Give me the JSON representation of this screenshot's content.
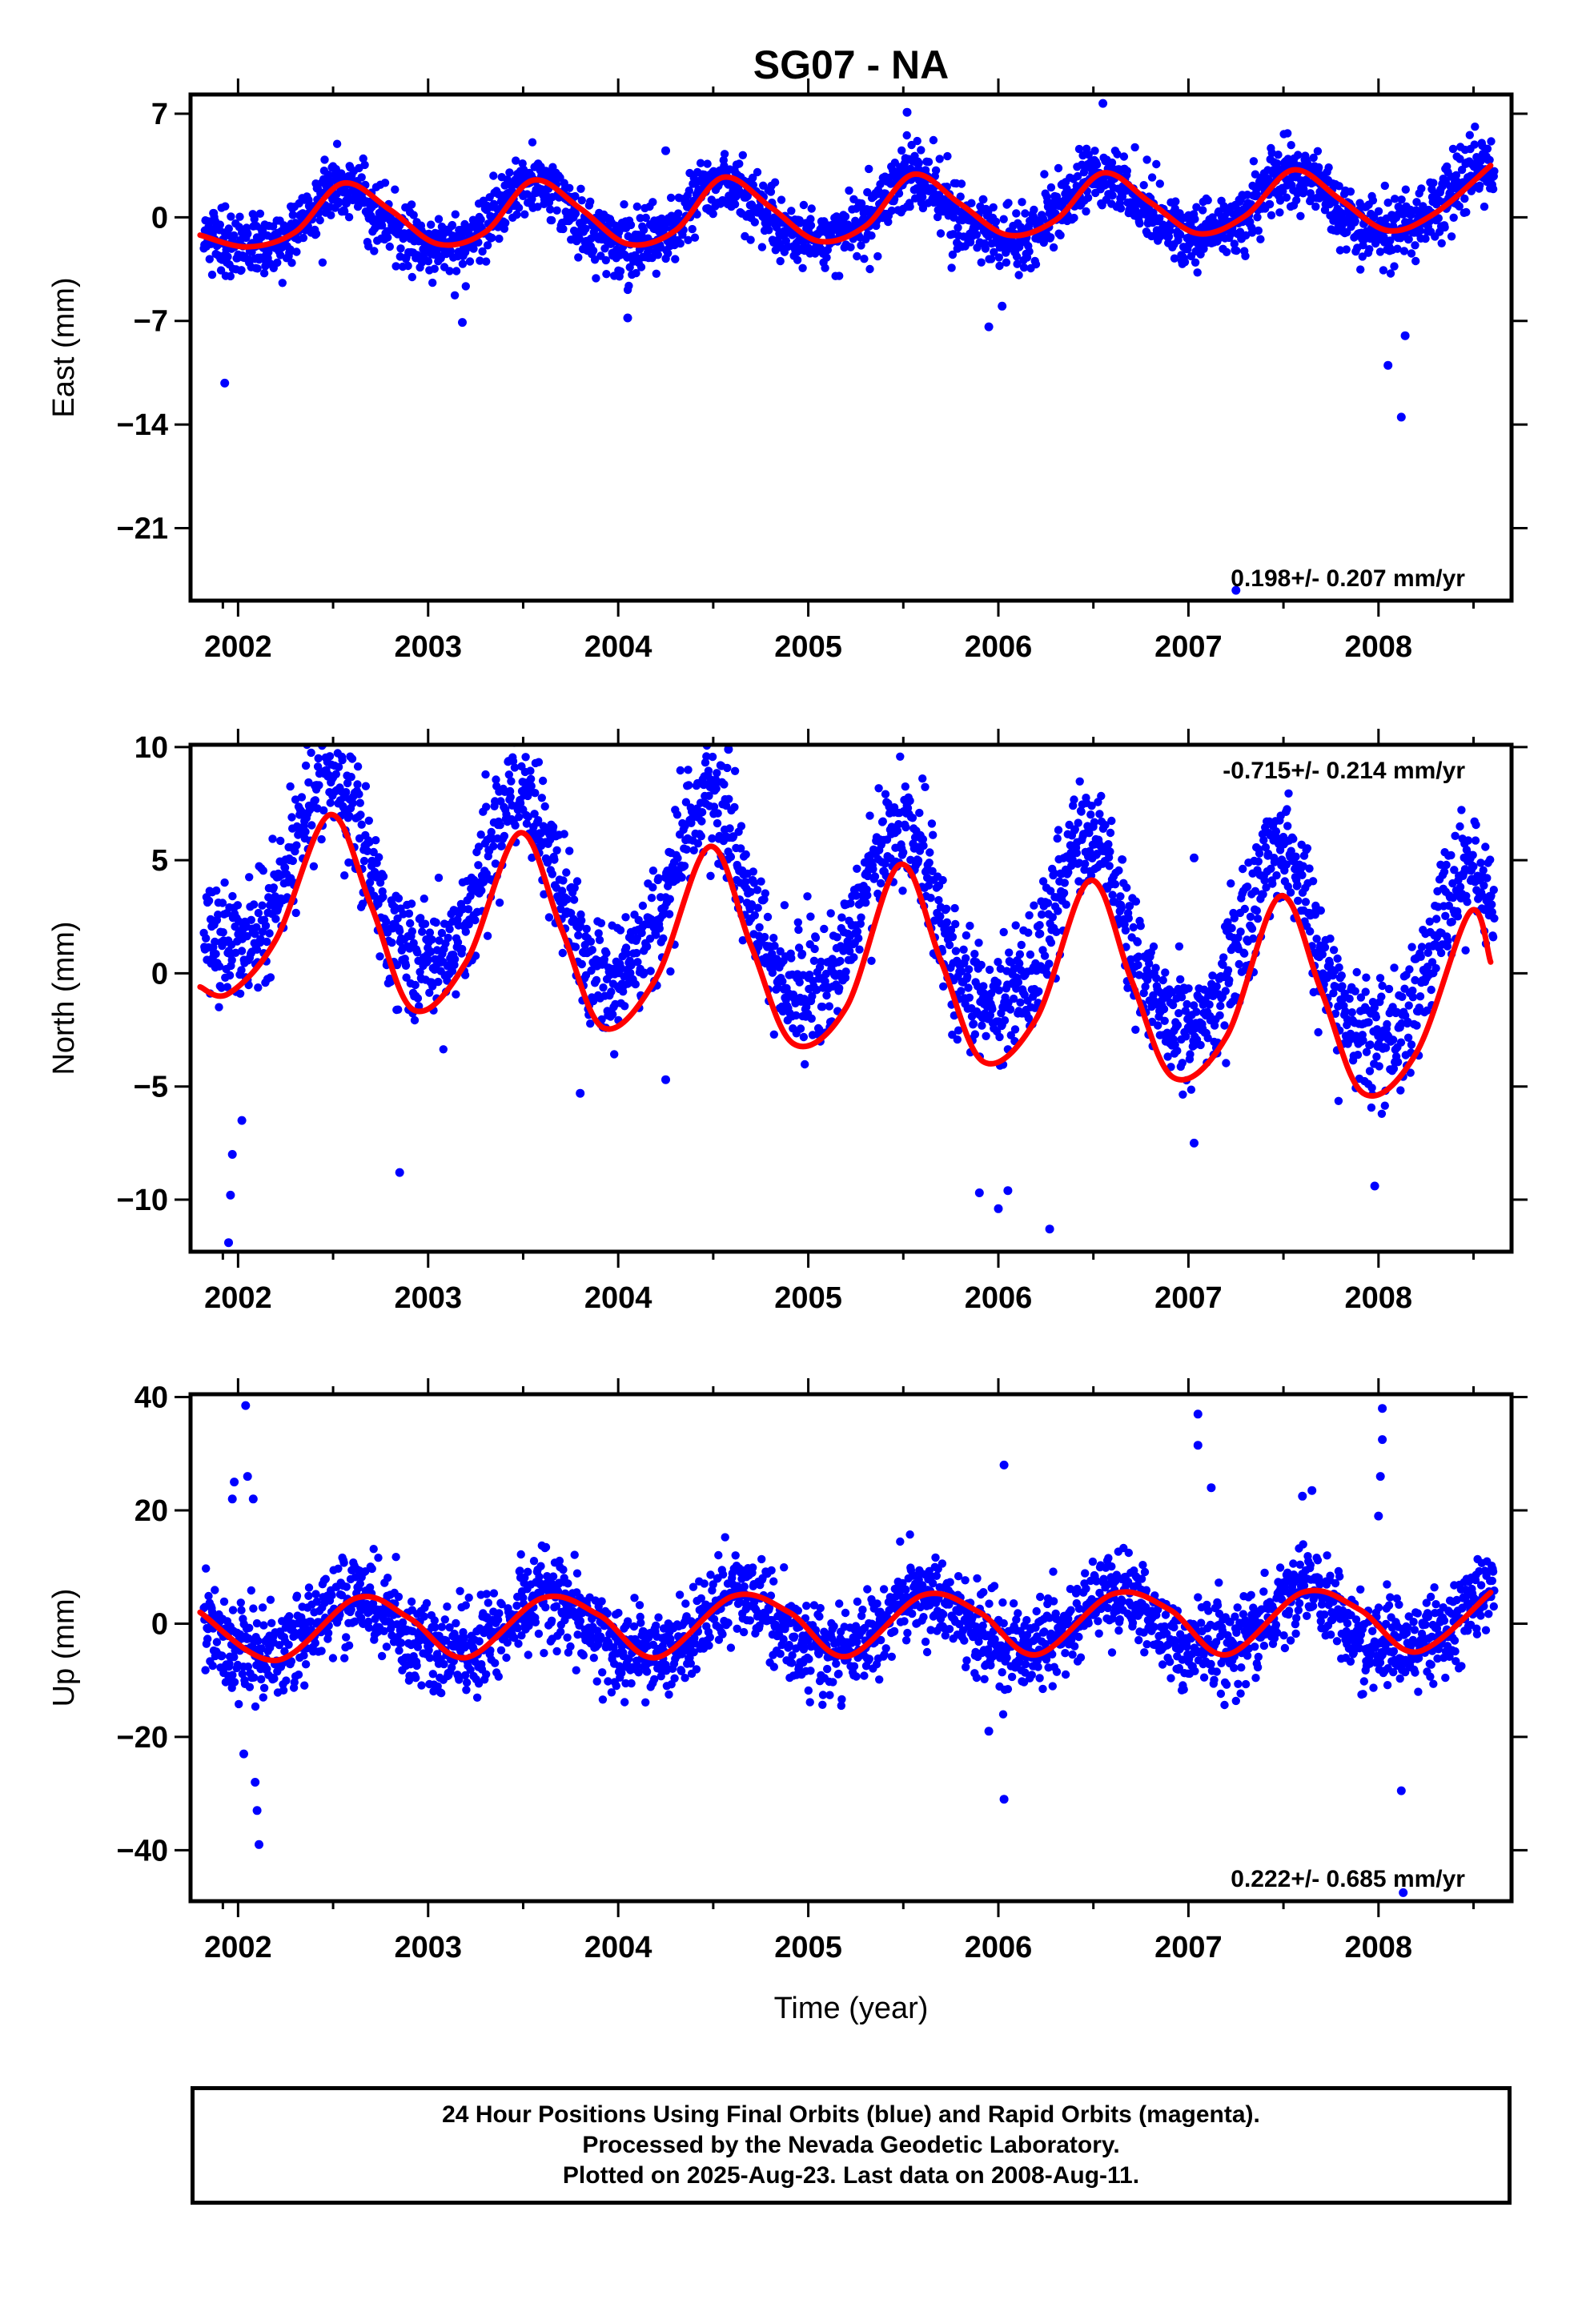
{
  "chart_data": {
    "type": "scatter",
    "title": "SG07 - NA",
    "xlabel": "Time (year)",
    "xlim": [
      2001.75,
      2008.7
    ],
    "xticks": [
      2002,
      2003,
      2004,
      2005,
      2006,
      2007,
      2008
    ],
    "colors": {
      "points": "#0000ff",
      "fit": "#ff0000"
    },
    "panels": [
      {
        "name": "east",
        "ylabel": "East (mm)",
        "ylim": [
          -25.9,
          8.3
        ],
        "yticks": [
          7,
          0,
          -7,
          -14,
          -21
        ],
        "ytick_labels": [
          "7",
          "0",
          "−7",
          "−14",
          "−21"
        ],
        "rate_label": "0.198+/- 0.207 mm/yr",
        "rate_position": "bottom-right",
        "fit_model": {
          "offset": 0.2,
          "slope": 0.198,
          "annual_amp": 2.0,
          "annual_phase_peak": 0.55,
          "semiannual_amp": 0.4,
          "scatter_sd": 1.1
        },
        "fit_curve": {
          "x": [
            2001.8,
            2002.05,
            2002.3,
            2002.55,
            2002.8,
            2003.05,
            2003.3,
            2003.55,
            2003.8,
            2004.05,
            2004.3,
            2004.55,
            2004.8,
            2005.05,
            2005.3,
            2005.55,
            2005.8,
            2006.05,
            2006.3,
            2006.55,
            2006.8,
            2007.05,
            2007.3,
            2007.55,
            2007.8,
            2008.05,
            2008.3,
            2008.59
          ],
          "y": [
            -1.2,
            -2.0,
            -1.0,
            2.3,
            0.5,
            -1.8,
            -1.0,
            2.5,
            0.6,
            -1.8,
            -0.9,
            2.7,
            0.7,
            -1.6,
            -0.6,
            2.9,
            0.9,
            -1.2,
            -0.2,
            3.0,
            1.0,
            -1.1,
            0.1,
            3.2,
            1.2,
            -0.9,
            0.3,
            3.5
          ]
        },
        "outliers": [
          {
            "x": 2001.93,
            "y": -11.2
          },
          {
            "x": 2003.18,
            "y": -7.1
          },
          {
            "x": 2004.05,
            "y": -6.8
          },
          {
            "x": 2005.95,
            "y": -7.4
          },
          {
            "x": 2006.02,
            "y": -6.0
          },
          {
            "x": 2007.25,
            "y": -25.2
          },
          {
            "x": 2008.05,
            "y": -10.0
          },
          {
            "x": 2008.12,
            "y": -13.5
          },
          {
            "x": 2008.14,
            "y": -8.0
          },
          {
            "x": 2005.52,
            "y": 7.1
          },
          {
            "x": 2006.55,
            "y": 7.7
          },
          {
            "x": 2004.25,
            "y": 4.5
          }
        ]
      },
      {
        "name": "north",
        "ylabel": "North (mm)",
        "ylim": [
          -12.3,
          10.1
        ],
        "yticks": [
          10,
          5,
          0,
          -5,
          -10
        ],
        "ytick_labels": [
          "10",
          "5",
          "0",
          "−5",
          "−10"
        ],
        "rate_label": "-0.715+/- 0.214 mm/yr",
        "rate_position": "top-right",
        "fit_model": {
          "offset": 2.6,
          "slope": -0.715,
          "annual_amp": 4.0,
          "annual_phase_peak": 0.48,
          "semiannual_amp": 0.6,
          "scatter_sd": 1.3
        },
        "fit_curve": {
          "x": [
            2001.8,
            2001.95,
            2002.2,
            2002.48,
            2002.7,
            2002.92,
            2003.2,
            2003.48,
            2003.7,
            2003.92,
            2004.2,
            2004.48,
            2004.7,
            2004.92,
            2005.2,
            2005.48,
            2005.7,
            2005.92,
            2006.2,
            2006.48,
            2006.7,
            2006.92,
            2007.2,
            2007.48,
            2007.7,
            2007.92,
            2008.2,
            2008.48,
            2008.59
          ],
          "y": [
            -0.6,
            -0.9,
            1.5,
            7.0,
            3.0,
            -1.6,
            0.5,
            6.2,
            2.0,
            -2.4,
            -0.2,
            5.6,
            1.2,
            -3.1,
            -1.5,
            4.8,
            0.5,
            -3.9,
            -2.0,
            4.1,
            -0.3,
            -4.6,
            -2.8,
            3.4,
            -0.8,
            -5.3,
            -3.5,
            2.7,
            0.5
          ]
        },
        "outliers": [
          {
            "x": 2001.95,
            "y": -11.9
          },
          {
            "x": 2001.96,
            "y": -9.8
          },
          {
            "x": 2001.97,
            "y": -8.0
          },
          {
            "x": 2002.02,
            "y": -6.5
          },
          {
            "x": 2002.85,
            "y": -8.8
          },
          {
            "x": 2003.8,
            "y": -5.3
          },
          {
            "x": 2004.25,
            "y": -4.7
          },
          {
            "x": 2004.58,
            "y": 9.9
          },
          {
            "x": 2005.9,
            "y": -9.7
          },
          {
            "x": 2006.0,
            "y": -10.4
          },
          {
            "x": 2006.05,
            "y": -9.6
          },
          {
            "x": 2006.27,
            "y": -11.3
          },
          {
            "x": 2007.03,
            "y": 5.1
          },
          {
            "x": 2007.03,
            "y": -7.5
          },
          {
            "x": 2007.98,
            "y": -9.4
          }
        ]
      },
      {
        "name": "up",
        "ylabel": "Up (mm)",
        "ylim": [
          -49.0,
          40.5
        ],
        "yticks": [
          40,
          20,
          0,
          -20,
          -40
        ],
        "ytick_labels": [
          "40",
          "20",
          "0",
          "−20",
          "−40"
        ],
        "rate_label": "0.222+/- 0.685 mm/yr",
        "rate_position": "bottom-right",
        "fit_model": {
          "offset": -0.5,
          "slope": 0.222,
          "annual_amp": 5.2,
          "annual_phase_peak": 0.62,
          "semiannual_amp": 0.8,
          "scatter_sd": 3.8
        },
        "fit_curve": {
          "x": [
            2001.8,
            2002.2,
            2002.62,
            2002.9,
            2003.2,
            2003.6,
            2003.9,
            2004.2,
            2004.6,
            2004.9,
            2005.2,
            2005.6,
            2005.9,
            2006.2,
            2006.6,
            2006.9,
            2007.2,
            2007.6,
            2007.9,
            2008.2,
            2008.59
          ],
          "y": [
            2.0,
            -6.5,
            4.5,
            1.0,
            -6.0,
            4.5,
            1.5,
            -6.0,
            4.8,
            2.0,
            -5.8,
            5.0,
            2.0,
            -5.5,
            5.2,
            2.5,
            -5.5,
            5.5,
            2.5,
            -5.0,
            5.5
          ]
        },
        "outliers": [
          {
            "x": 2002.04,
            "y": 38.5
          },
          {
            "x": 2002.05,
            "y": 26.0
          },
          {
            "x": 2001.98,
            "y": 25.0
          },
          {
            "x": 2001.97,
            "y": 22.0
          },
          {
            "x": 2002.08,
            "y": 22.0
          },
          {
            "x": 2002.09,
            "y": -28.0
          },
          {
            "x": 2002.1,
            "y": -33.0
          },
          {
            "x": 2002.11,
            "y": -39.0
          },
          {
            "x": 2002.03,
            "y": -23.0
          },
          {
            "x": 2005.95,
            "y": -19.0
          },
          {
            "x": 2006.03,
            "y": 28.0
          },
          {
            "x": 2006.03,
            "y": -31.0
          },
          {
            "x": 2007.05,
            "y": 37.0
          },
          {
            "x": 2007.05,
            "y": 31.5
          },
          {
            "x": 2007.12,
            "y": 24.0
          },
          {
            "x": 2008.02,
            "y": 38.0
          },
          {
            "x": 2008.02,
            "y": 32.5
          },
          {
            "x": 2008.01,
            "y": 26.0
          },
          {
            "x": 2008.0,
            "y": 19.0
          },
          {
            "x": 2008.12,
            "y": -29.5
          },
          {
            "x": 2008.13,
            "y": -47.5
          },
          {
            "x": 2007.6,
            "y": 22.5
          },
          {
            "x": 2007.65,
            "y": 23.5
          }
        ]
      }
    ]
  },
  "footer": {
    "line1": "24 Hour Positions Using Final Orbits (blue) and Rapid Orbits (magenta).",
    "line2": "Processed by the Nevada Geodetic Laboratory.",
    "line3": "Plotted on 2025-Aug-23. Last data on 2008-Aug-11."
  }
}
